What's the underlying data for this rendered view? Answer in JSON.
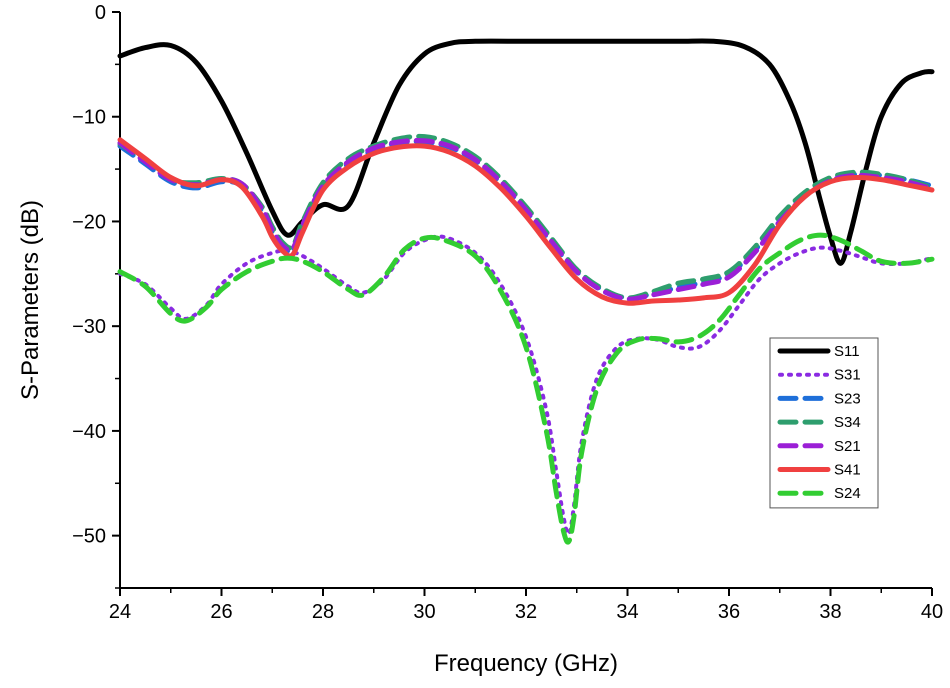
{
  "chart_data": {
    "type": "line",
    "title": "",
    "xlabel": "Frequency (GHz)",
    "ylabel": "S-Parameters (dB)",
    "xlim": [
      24,
      40
    ],
    "ylim": [
      -55,
      0
    ],
    "xticks": [
      "24",
      "26",
      "28",
      "30",
      "32",
      "34",
      "36",
      "38",
      "40"
    ],
    "yticks": [
      "0",
      "−10",
      "−20",
      "−30",
      "−40",
      "−50"
    ],
    "grid": false,
    "legend_position": "right",
    "series": [
      {
        "name": "S11",
        "color": "#000000",
        "style": "solid",
        "x": [
          24.0,
          24.5,
          25.0,
          25.5,
          26.0,
          26.5,
          27.0,
          27.3,
          27.6,
          28.0,
          28.5,
          29.0,
          29.5,
          30.0,
          30.5,
          31.0,
          32.0,
          33.0,
          34.0,
          35.0,
          35.7,
          36.3,
          36.8,
          37.2,
          37.5,
          37.8,
          38.0,
          38.2,
          38.4,
          38.7,
          39.0,
          39.4,
          39.8,
          40.0
        ],
        "y": [
          -4.2,
          -3.4,
          -3.2,
          -4.8,
          -8.5,
          -13.5,
          -19.0,
          -21.3,
          -20.0,
          -18.4,
          -18.5,
          -12.5,
          -7.0,
          -4.0,
          -3.0,
          -2.8,
          -2.8,
          -2.8,
          -2.8,
          -2.8,
          -2.8,
          -3.3,
          -5.0,
          -8.5,
          -12.5,
          -18.0,
          -21.5,
          -24.0,
          -21.0,
          -15.0,
          -10.0,
          -6.8,
          -5.8,
          -5.7
        ]
      },
      {
        "name": "S31",
        "color": "#8a2be2",
        "style": "dotted",
        "x": [
          24.0,
          24.5,
          25.0,
          25.3,
          25.7,
          26.0,
          26.5,
          27.0,
          27.3,
          27.6,
          28.0,
          28.5,
          28.8,
          29.2,
          29.6,
          30.0,
          30.4,
          31.0,
          31.5,
          32.0,
          32.4,
          32.6,
          32.75,
          32.85,
          32.95,
          33.1,
          33.4,
          33.8,
          34.2,
          34.6,
          35.0,
          35.4,
          35.8,
          36.2,
          36.6,
          37.0,
          37.4,
          37.8,
          38.2,
          38.6,
          39.0,
          39.5,
          40.0
        ],
        "y": [
          -25.0,
          -26.0,
          -28.3,
          -29.3,
          -28.0,
          -26.0,
          -24.0,
          -23.0,
          -22.8,
          -23.3,
          -24.5,
          -26.2,
          -26.8,
          -25.5,
          -23.0,
          -21.8,
          -21.5,
          -23.0,
          -26.0,
          -31.0,
          -38.0,
          -44.0,
          -48.5,
          -49.8,
          -47.0,
          -41.0,
          -35.0,
          -32.0,
          -31.2,
          -31.3,
          -32.0,
          -32.0,
          -30.5,
          -28.0,
          -25.5,
          -24.0,
          -23.0,
          -22.5,
          -22.8,
          -23.4,
          -24.0,
          -24.0,
          -23.5
        ]
      },
      {
        "name": "S23",
        "color": "#1e6fd9",
        "style": "dashed",
        "x": [
          24.0,
          24.5,
          25.0,
          25.5,
          26.0,
          26.4,
          26.8,
          27.0,
          27.2,
          27.4,
          27.6,
          28.0,
          28.5,
          29.0,
          29.5,
          30.0,
          30.5,
          31.0,
          31.5,
          32.0,
          32.5,
          33.0,
          33.5,
          34.0,
          34.5,
          35.0,
          35.5,
          36.0,
          36.5,
          37.0,
          37.5,
          38.0,
          38.5,
          39.0,
          39.5,
          40.0
        ],
        "y": [
          -12.8,
          -14.5,
          -16.2,
          -16.8,
          -16.2,
          -16.6,
          -19.0,
          -21.0,
          -22.5,
          -22.8,
          -20.5,
          -16.8,
          -14.5,
          -13.2,
          -12.5,
          -12.4,
          -12.9,
          -14.2,
          -16.3,
          -19.0,
          -22.0,
          -24.8,
          -26.5,
          -27.3,
          -26.9,
          -26.3,
          -25.8,
          -25.0,
          -22.8,
          -19.8,
          -17.5,
          -16.0,
          -15.5,
          -15.6,
          -16.0,
          -16.6
        ]
      },
      {
        "name": "S34",
        "color": "#2e9e6e",
        "style": "dashed",
        "x": [
          24.0,
          24.5,
          25.0,
          25.5,
          26.0,
          26.4,
          26.8,
          27.0,
          27.2,
          27.4,
          27.6,
          28.0,
          28.5,
          29.0,
          29.5,
          30.0,
          30.5,
          31.0,
          31.5,
          32.0,
          32.5,
          33.0,
          33.5,
          34.0,
          34.5,
          35.0,
          35.5,
          36.0,
          36.5,
          37.0,
          37.5,
          38.0,
          38.5,
          39.0,
          39.5,
          40.0
        ],
        "y": [
          -12.6,
          -14.2,
          -16.0,
          -16.3,
          -15.9,
          -16.4,
          -18.6,
          -20.5,
          -22.0,
          -22.4,
          -20.0,
          -16.3,
          -14.0,
          -12.8,
          -12.1,
          -11.9,
          -12.5,
          -13.8,
          -15.9,
          -18.6,
          -21.6,
          -24.6,
          -26.4,
          -27.3,
          -26.7,
          -25.9,
          -25.5,
          -24.8,
          -22.5,
          -19.5,
          -17.2,
          -15.8,
          -15.3,
          -15.5,
          -16.0,
          -16.8
        ]
      },
      {
        "name": "S21",
        "color": "#9b1fd6",
        "style": "dashed",
        "x": [
          24.0,
          24.5,
          25.0,
          25.5,
          26.0,
          26.4,
          26.8,
          27.0,
          27.2,
          27.4,
          27.6,
          28.0,
          28.5,
          29.0,
          29.5,
          30.0,
          30.5,
          31.0,
          31.5,
          32.0,
          32.5,
          33.0,
          33.5,
          34.0,
          34.5,
          35.0,
          35.5,
          36.0,
          36.5,
          37.0,
          37.5,
          38.0,
          38.5,
          39.0,
          39.5,
          40.0
        ],
        "y": [
          -12.5,
          -14.3,
          -16.0,
          -16.5,
          -16.0,
          -16.4,
          -18.8,
          -20.8,
          -22.3,
          -22.6,
          -20.3,
          -16.6,
          -14.3,
          -13.0,
          -12.4,
          -12.3,
          -12.8,
          -14.1,
          -16.2,
          -18.9,
          -21.9,
          -24.8,
          -26.6,
          -27.4,
          -27.0,
          -26.5,
          -26.0,
          -25.3,
          -23.0,
          -20.0,
          -17.6,
          -16.1,
          -15.6,
          -15.8,
          -16.2,
          -16.9
        ]
      },
      {
        "name": "S41",
        "color": "#f04040",
        "style": "solid",
        "x": [
          24.0,
          24.5,
          25.0,
          25.5,
          26.0,
          26.4,
          26.8,
          27.0,
          27.2,
          27.4,
          27.6,
          28.0,
          28.5,
          29.0,
          29.5,
          30.0,
          30.5,
          31.0,
          31.5,
          32.0,
          32.5,
          33.0,
          33.5,
          34.0,
          34.5,
          35.0,
          35.5,
          36.0,
          36.5,
          37.0,
          37.5,
          38.0,
          38.5,
          39.0,
          39.5,
          40.0
        ],
        "y": [
          -12.2,
          -14.0,
          -15.8,
          -16.6,
          -16.0,
          -16.7,
          -19.5,
          -21.5,
          -22.8,
          -23.2,
          -21.0,
          -17.0,
          -14.8,
          -13.5,
          -12.9,
          -12.8,
          -13.4,
          -14.7,
          -16.8,
          -19.5,
          -22.6,
          -25.5,
          -27.2,
          -27.8,
          -27.6,
          -27.5,
          -27.3,
          -26.8,
          -24.2,
          -20.3,
          -17.6,
          -16.2,
          -15.8,
          -16.0,
          -16.5,
          -17.0
        ]
      },
      {
        "name": "S24",
        "color": "#32cd32",
        "style": "dashed",
        "x": [
          24.0,
          24.5,
          25.0,
          25.3,
          25.7,
          26.0,
          26.5,
          27.0,
          27.3,
          27.6,
          28.0,
          28.5,
          28.8,
          29.2,
          29.6,
          30.0,
          30.4,
          31.0,
          31.5,
          32.0,
          32.4,
          32.6,
          32.75,
          32.85,
          32.95,
          33.1,
          33.4,
          33.8,
          34.2,
          34.6,
          35.0,
          35.4,
          35.8,
          36.2,
          36.6,
          37.0,
          37.4,
          37.8,
          38.2,
          38.6,
          39.0,
          39.5,
          40.0
        ],
        "y": [
          -24.8,
          -26.2,
          -28.8,
          -29.5,
          -28.2,
          -26.5,
          -24.8,
          -23.8,
          -23.5,
          -23.8,
          -24.8,
          -26.5,
          -27.0,
          -25.3,
          -22.7,
          -21.6,
          -21.8,
          -23.3,
          -26.6,
          -32.0,
          -40.0,
          -46.0,
          -49.8,
          -50.5,
          -48.0,
          -42.0,
          -36.0,
          -32.5,
          -31.3,
          -31.2,
          -31.5,
          -31.0,
          -29.5,
          -27.0,
          -24.5,
          -23.0,
          -21.8,
          -21.3,
          -21.8,
          -22.8,
          -23.8,
          -24.0,
          -23.6
        ]
      }
    ]
  }
}
